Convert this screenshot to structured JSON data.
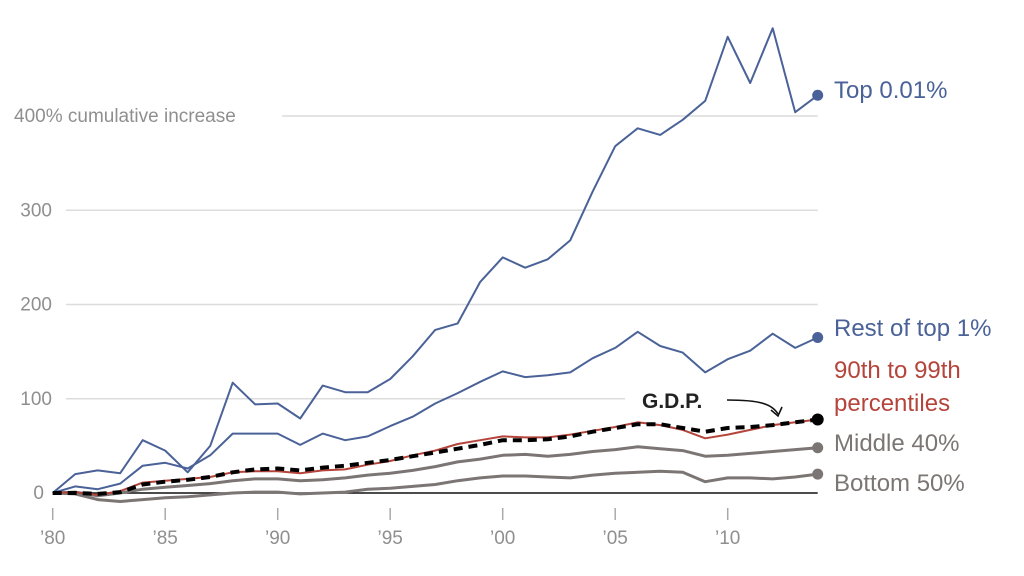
{
  "chart_data": {
    "type": "line",
    "title": "",
    "ylabel": "400% cumulative increase",
    "xlabel": "",
    "x": [
      1980,
      1981,
      1982,
      1983,
      1984,
      1985,
      1986,
      1987,
      1988,
      1989,
      1990,
      1991,
      1992,
      1993,
      1994,
      1995,
      1996,
      1997,
      1998,
      1999,
      2000,
      2001,
      2002,
      2003,
      2004,
      2005,
      2006,
      2007,
      2008,
      2009,
      2010,
      2011,
      2012,
      2013,
      2014
    ],
    "xlim": [
      1980,
      2014
    ],
    "ylim": [
      0,
      400
    ],
    "x_ticks": [
      {
        "value": 1980,
        "label": "’80"
      },
      {
        "value": 1985,
        "label": "’85"
      },
      {
        "value": 1990,
        "label": "’90"
      },
      {
        "value": 1995,
        "label": "’95"
      },
      {
        "value": 2000,
        "label": "’00"
      },
      {
        "value": 2005,
        "label": "’05"
      },
      {
        "value": 2010,
        "label": "’10"
      }
    ],
    "y_ticks": [
      {
        "value": 0,
        "label": "0"
      },
      {
        "value": 100,
        "label": "100"
      },
      {
        "value": 200,
        "label": "200"
      },
      {
        "value": 300,
        "label": "300"
      },
      {
        "value": 400,
        "label": "400% cumulative increase"
      }
    ],
    "grid": true,
    "legend": "direct labels at right end of lines",
    "series": [
      {
        "name": "Top 0.01%",
        "label_lines": [
          "Top 0.01%"
        ],
        "color": "#4a6298",
        "style": "solid",
        "end_dot": true,
        "values": [
          0,
          20,
          24,
          21,
          56,
          45,
          22,
          50,
          117,
          94,
          95,
          79,
          114,
          107,
          107,
          121,
          145,
          173,
          180,
          224,
          250,
          239,
          248,
          268,
          320,
          368,
          387,
          380,
          396,
          416,
          484,
          435,
          493,
          404,
          422
        ]
      },
      {
        "name": "Rest of top 1%",
        "label_lines": [
          "Rest of top 1%"
        ],
        "color": "#4a6298",
        "style": "solid",
        "end_dot": true,
        "values": [
          0,
          7,
          4,
          10,
          29,
          32,
          26,
          40,
          63,
          63,
          63,
          51,
          63,
          56,
          60,
          71,
          81,
          95,
          106,
          118,
          129,
          123,
          125,
          128,
          143,
          154,
          171,
          156,
          149,
          128,
          142,
          151,
          169,
          154,
          165
        ]
      },
      {
        "name": "90th to 99th percentiles",
        "label_lines": [
          "90th to 99th",
          "percentiles"
        ],
        "color": "#b5443b",
        "style": "solid",
        "end_dot": false,
        "values": [
          0,
          1,
          -2,
          2,
          11,
          13,
          15,
          17,
          22,
          23,
          23,
          21,
          24,
          25,
          30,
          34,
          40,
          45,
          52,
          56,
          60,
          59,
          59,
          62,
          66,
          70,
          75,
          72,
          67,
          58,
          62,
          67,
          72,
          75,
          78
        ]
      },
      {
        "name": "Middle 40%",
        "label_lines": [
          "Middle 40%"
        ],
        "color": "#7b7673",
        "style": "solid",
        "end_dot": true,
        "values": [
          0,
          1,
          -3,
          0,
          4,
          6,
          8,
          10,
          13,
          15,
          15,
          13,
          14,
          16,
          19,
          21,
          24,
          28,
          33,
          36,
          40,
          41,
          39,
          41,
          44,
          46,
          49,
          47,
          45,
          39,
          40,
          42,
          44,
          46,
          48
        ]
      },
      {
        "name": "Bottom 50%",
        "label_lines": [
          "Bottom 50%"
        ],
        "color": "#7b7673",
        "style": "solid",
        "end_dot": true,
        "values": [
          0,
          -1,
          -7,
          -9,
          -7,
          -5,
          -4,
          -2,
          0,
          1,
          1,
          -1,
          0,
          1,
          4,
          5,
          7,
          9,
          13,
          16,
          18,
          18,
          17,
          16,
          19,
          21,
          22,
          23,
          22,
          12,
          16,
          16,
          15,
          17,
          20
        ]
      },
      {
        "name": "G.D.P.",
        "label_lines": [],
        "color": "#000000",
        "style": "dashed",
        "end_dot": true,
        "values": [
          0,
          0,
          -1,
          1,
          9,
          12,
          14,
          17,
          22,
          25,
          26,
          24,
          27,
          29,
          32,
          35,
          39,
          43,
          47,
          51,
          56,
          56,
          57,
          60,
          65,
          69,
          73,
          73,
          69,
          65,
          69,
          70,
          72,
          75,
          78
        ]
      }
    ],
    "annotations": [
      {
        "text": "G.D.P.",
        "points_to": "G.D.P.",
        "x": 2012
      }
    ]
  }
}
